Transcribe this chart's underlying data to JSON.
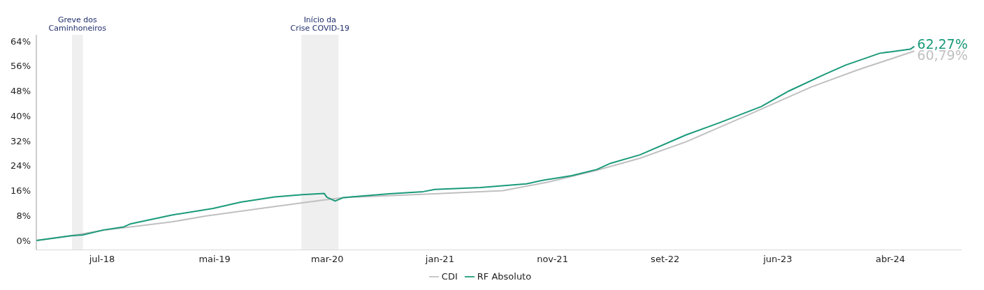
{
  "chart_data": {
    "type": "line",
    "xlim": [
      "2018-01-31",
      "2024-10-31"
    ],
    "ylim": [
      -3,
      66
    ],
    "xticks": [
      {
        "value": "2018-07-25",
        "label": "jul-18"
      },
      {
        "value": "2019-05-21",
        "label": "mai-19"
      },
      {
        "value": "2020-03-16",
        "label": "mar-20"
      },
      {
        "value": "2021-01-10",
        "label": "jan-21"
      },
      {
        "value": "2021-11-06",
        "label": "nov-21"
      },
      {
        "value": "2022-09-02",
        "label": "set-22"
      },
      {
        "value": "2023-06-29",
        "label": "jun-23"
      },
      {
        "value": "2024-04-24",
        "label": "abr-24"
      }
    ],
    "yticks": [
      {
        "value": 0,
        "label": "0%"
      },
      {
        "value": 8,
        "label": "8%"
      },
      {
        "value": 16,
        "label": "16%"
      },
      {
        "value": 24,
        "label": "24%"
      },
      {
        "value": 32,
        "label": "32%"
      },
      {
        "value": 40,
        "label": "40%"
      },
      {
        "value": 48,
        "label": "48%"
      },
      {
        "value": 56,
        "label": "56%"
      },
      {
        "value": 64,
        "label": "64%"
      }
    ],
    "grid": false,
    "legend": "bottom",
    "tick_labels": "xy",
    "bands": [
      {
        "axis": "x",
        "from": "2018-05-06",
        "to": "2018-06-04",
        "label": "Greve dos Caminhoneiros",
        "color": "#efefef"
      },
      {
        "axis": "x",
        "from": "2020-01-07",
        "to": "2020-04-15",
        "label": "Início da Crise COVID-19",
        "color": "#efefef"
      }
    ],
    "series": [
      {
        "name": "CDI",
        "color": "#c0c0c0",
        "x": [
          "2018-01-31",
          "2018-05-06",
          "2018-07-29",
          "2019-01-27",
          "2019-04-29",
          "2019-10-28",
          "2020-02-27",
          "2020-04-28",
          "2020-12-27",
          "2021-06-27",
          "2021-10-27",
          "2022-02-27",
          "2022-06-27",
          "2022-10-28",
          "2023-04-28",
          "2023-09-27",
          "2024-01-27",
          "2024-06-27"
        ],
        "values": [
          0,
          1.6,
          3.3,
          6,
          7.9,
          10.9,
          12.9,
          13.8,
          15,
          16,
          18.8,
          22.4,
          26.4,
          31.7,
          41.2,
          49.3,
          54.7,
          60.79
        ],
        "value_labels": [
          null,
          null,
          null,
          null,
          null,
          null,
          null,
          null,
          null,
          null,
          null,
          null,
          null,
          null,
          null,
          null,
          null,
          "60,79%"
        ]
      },
      {
        "name": "RF Absoluto",
        "color": "#1a9a7a",
        "x": [
          "2018-01-31",
          "2018-05-06",
          "2018-06-04",
          "2018-07-29",
          "2018-09-21",
          "2018-10-10",
          "2019-01-27",
          "2019-05-17",
          "2019-07-29",
          "2019-10-28",
          "2020-01-09",
          "2020-03-08",
          "2020-03-15",
          "2020-04-06",
          "2020-04-28",
          "2020-08-28",
          "2020-11-27",
          "2020-12-27",
          "2021-04-28",
          "2021-08-28",
          "2021-10-15",
          "2021-12-27",
          "2022-03-04",
          "2022-04-10",
          "2022-06-27",
          "2022-10-28",
          "2023-01-27",
          "2023-05-16",
          "2023-07-29",
          "2023-10-28",
          "2023-12-27",
          "2024-03-27",
          "2024-06-16",
          "2024-06-27"
        ],
        "values": [
          0,
          1.6,
          1.8,
          3.4,
          4.4,
          5.4,
          8.2,
          10.3,
          12.3,
          14,
          14.7,
          15.1,
          13.9,
          12.7,
          13.8,
          15,
          15.7,
          16.4,
          17,
          18.2,
          19.4,
          20.8,
          22.8,
          24.8,
          27.5,
          33.9,
          37.9,
          43,
          48,
          53.1,
          56.3,
          60.1,
          61.4,
          62.27
        ],
        "value_labels": [
          null,
          null,
          null,
          null,
          null,
          null,
          null,
          null,
          null,
          null,
          null,
          null,
          null,
          null,
          null,
          null,
          null,
          null,
          null,
          null,
          null,
          null,
          null,
          null,
          null,
          null,
          null,
          null,
          null,
          null,
          null,
          null,
          null,
          "62,27%"
        ]
      }
    ]
  }
}
